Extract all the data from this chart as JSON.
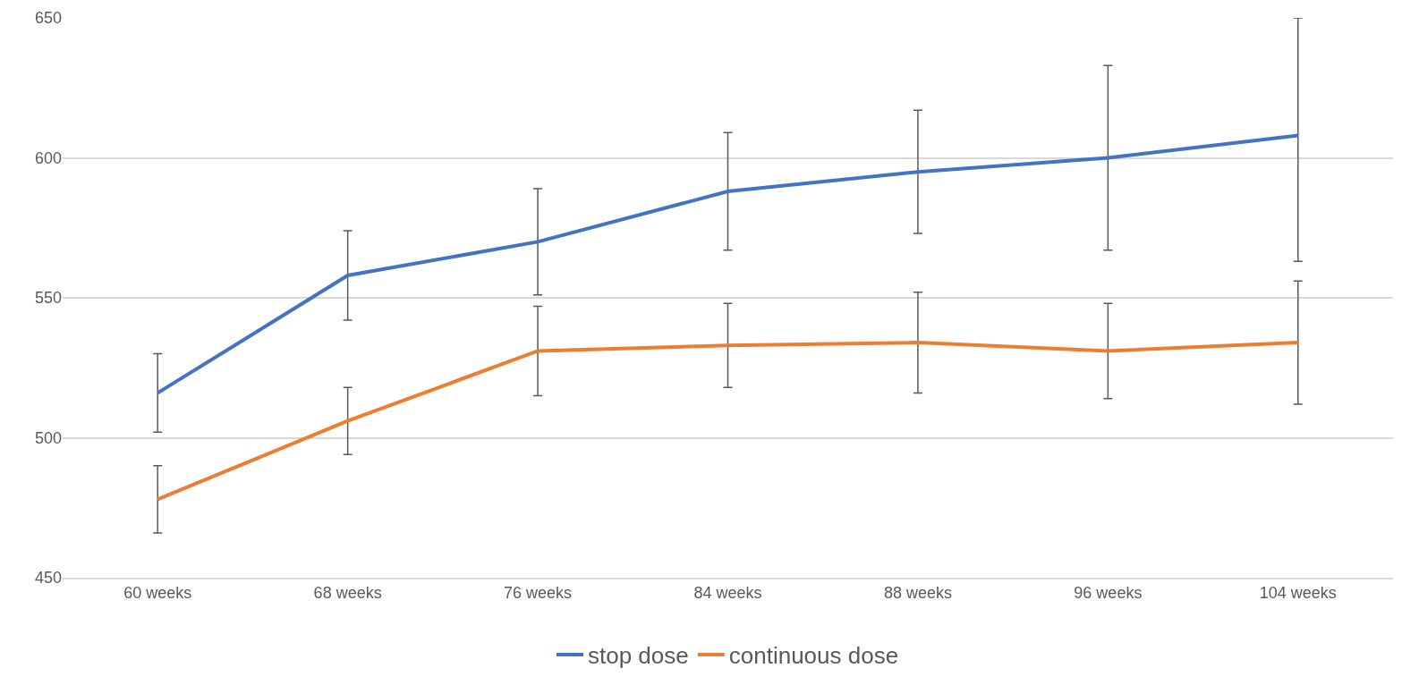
{
  "chart_data": {
    "type": "line",
    "categories": [
      "60 weeks",
      "68 weeks",
      "76 weeks",
      "84 weeks",
      "88 weeks",
      "96 weeks",
      "104 weeks"
    ],
    "series": [
      {
        "name": "stop dose",
        "color": "#4472c4",
        "values": [
          516,
          558,
          570,
          588,
          595,
          600,
          608
        ],
        "errors": [
          [
            502,
            530
          ],
          [
            542,
            574
          ],
          [
            551,
            589
          ],
          [
            567,
            609
          ],
          [
            573,
            617
          ],
          [
            567,
            633
          ],
          [
            563,
            650
          ]
        ]
      },
      {
        "name": "continuous dose",
        "color": "#ed7d31",
        "values": [
          478,
          506,
          531,
          533,
          534,
          531,
          534
        ],
        "errors": [
          [
            466,
            490
          ],
          [
            494,
            518
          ],
          [
            515,
            547
          ],
          [
            518,
            548
          ],
          [
            516,
            552
          ],
          [
            514,
            548
          ],
          [
            512,
            556
          ]
        ]
      }
    ],
    "ylim": [
      450,
      650
    ],
    "yticks": [
      450,
      500,
      550,
      600,
      650
    ],
    "grid": "y",
    "legend": "bottom",
    "marker": "none",
    "line_style": "solid"
  }
}
